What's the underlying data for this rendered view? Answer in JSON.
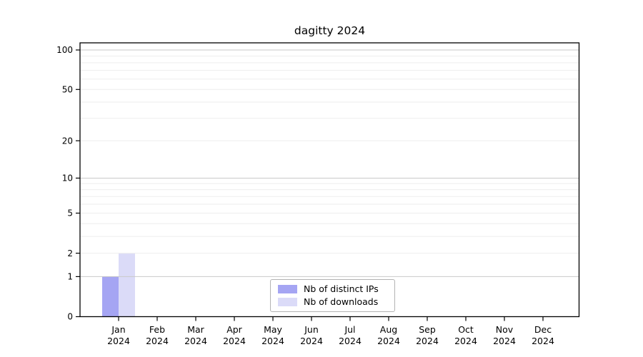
{
  "chart_data": {
    "type": "bar",
    "title": "dagitty 2024",
    "categories": [
      "Jan",
      "Feb",
      "Mar",
      "Apr",
      "May",
      "Jun",
      "Jul",
      "Aug",
      "Sep",
      "Oct",
      "Nov",
      "Dec"
    ],
    "x_tick_second_line": "2024",
    "series": [
      {
        "name": "Nb of distinct IPs",
        "values": [
          1,
          0,
          0,
          0,
          0,
          0,
          0,
          0,
          0,
          0,
          0,
          0
        ],
        "color": "#a5a5f3"
      },
      {
        "name": "Nb of downloads",
        "values": [
          2,
          0,
          0,
          0,
          0,
          0,
          0,
          0,
          0,
          0,
          0,
          0
        ],
        "color": "#dbdbf8"
      }
    ],
    "xlabel": "",
    "ylabel": "",
    "y_scale": "log(1+x)",
    "y_ticks": [
      0,
      1,
      2,
      5,
      10,
      20,
      50,
      100
    ],
    "y_major_gridlines": [
      1,
      10,
      100
    ],
    "y_minor_gridlines": [
      2,
      3,
      4,
      5,
      6,
      7,
      8,
      9,
      20,
      30,
      40,
      50,
      60,
      70,
      80,
      90
    ],
    "ylim": [
      0,
      112
    ],
    "grid": "horizontal",
    "legend_position": "inside-bottom-center",
    "colors": {
      "background": "#ffffff",
      "axis": "#000000",
      "text": "#000000",
      "major_grid": "#c9c9c9",
      "minor_grid": "#eeeeee",
      "legend_border": "#b3b3b3"
    }
  }
}
